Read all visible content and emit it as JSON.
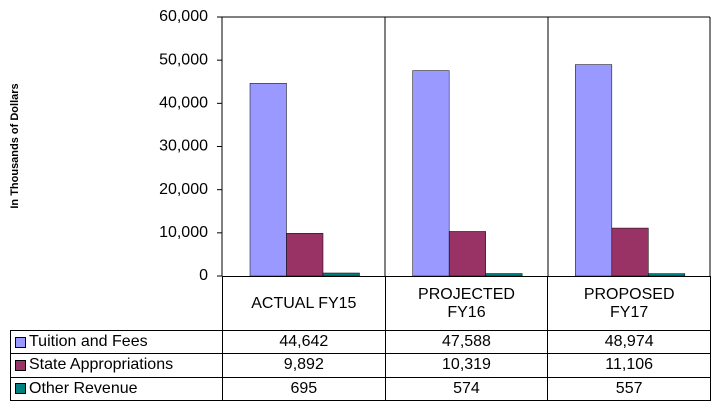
{
  "chart_data": {
    "type": "bar",
    "y_label": "In Thousands of Dollars",
    "categories": [
      "ACTUAL FY15",
      "PROJECTED FY16",
      "PROPOSED FY17"
    ],
    "series": [
      {
        "name": "Tuition and Fees",
        "color": "#9999ff",
        "values": [
          44642,
          47588,
          48974
        ],
        "value_labels": [
          "44,642",
          "47,588",
          "48,974"
        ]
      },
      {
        "name": "State Appropriations",
        "color": "#993366",
        "values": [
          9892,
          10319,
          11106
        ],
        "value_labels": [
          "9,892",
          "10,319",
          "11,106"
        ]
      },
      {
        "name": "Other Revenue",
        "color": "#008080",
        "values": [
          695,
          574,
          557
        ],
        "value_labels": [
          "695",
          "574",
          "557"
        ]
      }
    ],
    "ylim": [
      0,
      60000
    ],
    "yticks": [
      0,
      {
        "value": 10000,
        "label": "10,000"
      },
      {
        "value": 20000,
        "label": "20,000"
      },
      {
        "value": 30000,
        "label": "30,000"
      },
      {
        "value": 40000,
        "label": "40,000"
      },
      {
        "value": 50000,
        "label": "50,000"
      },
      {
        "value": 60000,
        "label": "60,000"
      }
    ],
    "grid": false
  }
}
